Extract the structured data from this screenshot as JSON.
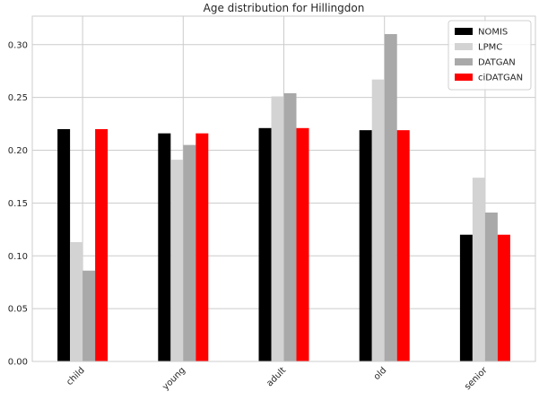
{
  "chart_data": {
    "type": "bar",
    "title": "Age distribution for Hillingdon",
    "xlabel": "",
    "ylabel": "",
    "categories": [
      "child",
      "young",
      "adult",
      "old",
      "senior"
    ],
    "series": [
      {
        "name": "NOMIS",
        "color": "#000000",
        "values": [
          0.22,
          0.216,
          0.221,
          0.219,
          0.12
        ]
      },
      {
        "name": "LPMC",
        "color": "#d3d3d3",
        "values": [
          0.113,
          0.191,
          0.251,
          0.267,
          0.174
        ]
      },
      {
        "name": "DATGAN",
        "color": "#a9a9a9",
        "values": [
          0.086,
          0.205,
          0.254,
          0.31,
          0.141
        ]
      },
      {
        "name": "ciDATGAN",
        "color": "#ff0000",
        "values": [
          0.22,
          0.216,
          0.221,
          0.219,
          0.12
        ]
      }
    ],
    "ylim": [
      0,
      0.327
    ],
    "yticks": [
      "0.00",
      "0.05",
      "0.10",
      "0.15",
      "0.20",
      "0.25",
      "0.30"
    ],
    "grid": true,
    "legend_position": "top-right",
    "colors": {
      "grid": "#cccccc",
      "background": "#ffffff",
      "axis_frame": "#cccccc"
    }
  }
}
